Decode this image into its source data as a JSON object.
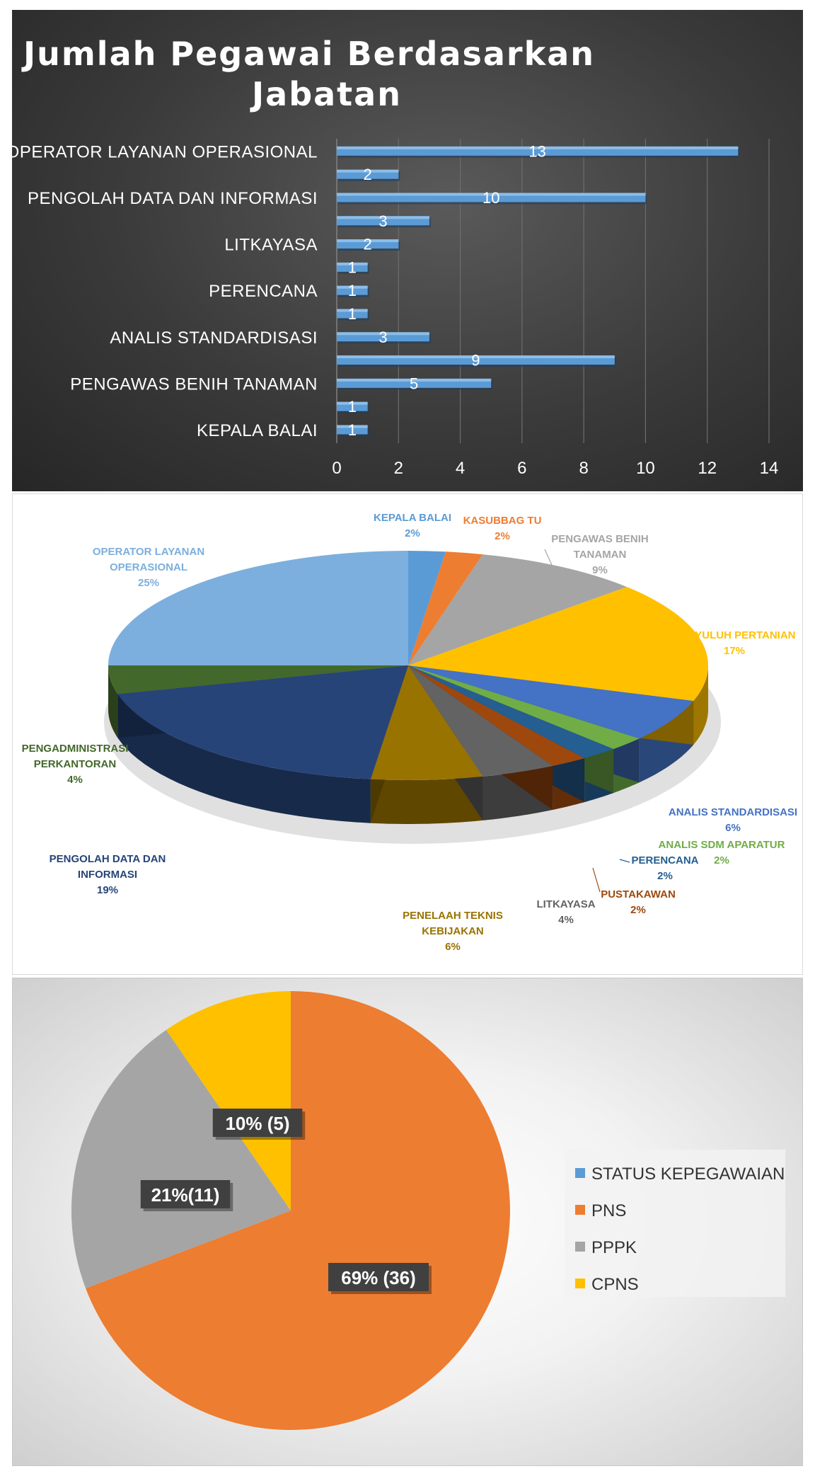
{
  "chart_data": [
    {
      "type": "bar",
      "orientation": "horizontal",
      "title": "Jumlah Pegawai Berdasarkan Jabatan",
      "title_lines": [
        "Jumlah Pegawai Berdasarkan",
        "Jabatan"
      ],
      "categories": [
        "OPERATOR LAYANAN OPERASIONAL",
        "",
        "PENGOLAH DATA DAN INFORMASI",
        "",
        "LITKAYASA",
        "",
        "PERENCANA",
        "",
        "ANALIS STANDARDISASI",
        "",
        "PENGAWAS BENIH TANAMAN",
        "",
        "KEPALA BALAI"
      ],
      "values": [
        13,
        2,
        10,
        3,
        2,
        1,
        1,
        1,
        3,
        9,
        5,
        1,
        1
      ],
      "xlim": [
        0,
        14
      ],
      "xticks": [
        "0",
        "2",
        "4",
        "6",
        "8",
        "10",
        "12",
        "14"
      ],
      "grid": "vertical",
      "bar_color": "#5b9bd5",
      "background": "#3a3a3a"
    },
    {
      "type": "pie",
      "style": "3d",
      "slices": [
        {
          "name": "KEPALA BALAI",
          "value": 2,
          "label": "2%",
          "color": "#5b9bd5",
          "text_color": "#5b9bd5",
          "lines": [
            "KEPALA BALAI"
          ]
        },
        {
          "name": "KASUBBAG TU",
          "value": 2,
          "label": "2%",
          "color": "#ed7d31",
          "text_color": "#ed7d31",
          "lines": [
            "KASUBBAG TU"
          ]
        },
        {
          "name": "PENGAWAS BENIH TANAMAN",
          "value": 9,
          "label": "9%",
          "color": "#a5a5a5",
          "text_color": "#a5a5a5",
          "lines": [
            "PENGAWAS BENIH",
            "TANAMAN"
          ]
        },
        {
          "name": "PENYULUH PERTANIAN",
          "value": 17,
          "label": "17%",
          "color": "#ffc000",
          "text_color": "#ffc000",
          "lines": [
            "PENYULUH PERTANIAN"
          ]
        },
        {
          "name": "ANALIS STANDARDISASI",
          "value": 6,
          "label": "6%",
          "color": "#4472c4",
          "text_color": "#4472c4",
          "lines": [
            "ANALIS STANDARDISASI"
          ]
        },
        {
          "name": "ANALIS SDM APARATUR",
          "value": 2,
          "label": "2%",
          "color": "#70ad47",
          "text_color": "#70ad47",
          "lines": [
            "ANALIS SDM APARATUR"
          ]
        },
        {
          "name": "PERENCANA",
          "value": 2,
          "label": "2%",
          "color": "#255e91",
          "text_color": "#255e91",
          "lines": [
            "PERENCANA"
          ]
        },
        {
          "name": "PUSTAKAWAN",
          "value": 2,
          "label": "2%",
          "color": "#9e480e",
          "text_color": "#9e480e",
          "lines": [
            "PUSTAKAWAN"
          ]
        },
        {
          "name": "LITKAYASA",
          "value": 4,
          "label": "4%",
          "color": "#636363",
          "text_color": "#636363",
          "lines": [
            "LITKAYASA"
          ]
        },
        {
          "name": "PENELAAH TEKNIS KEBIJAKAN",
          "value": 6,
          "label": "6%",
          "color": "#997300",
          "text_color": "#997300",
          "lines": [
            "PENELAAH TEKNIS",
            "KEBIJAKAN"
          ]
        },
        {
          "name": "PENGOLAH DATA DAN INFORMASI",
          "value": 19,
          "label": "19%",
          "color": "#264478",
          "text_color": "#264478",
          "lines": [
            "PENGOLAH DATA DAN",
            "INFORMASI"
          ]
        },
        {
          "name": "PENGADMINISTRASI PERKANTORAN",
          "value": 4,
          "label": "4%",
          "color": "#43682b",
          "text_color": "#43682b",
          "lines": [
            "PENGADMINISTRASI",
            "PERKANTORAN"
          ]
        },
        {
          "name": "OPERATOR LAYANAN OPERASIONAL",
          "value": 25,
          "label": "25%",
          "color": "#7cafdd",
          "text_color": "#7cafdd",
          "lines": [
            "OPERATOR LAYANAN",
            "OPERASIONAL"
          ]
        }
      ]
    },
    {
      "type": "pie",
      "slices": [
        {
          "name": "PNS",
          "value": 36,
          "label": "69% (36)",
          "color": "#ed7d31"
        },
        {
          "name": "PPPK",
          "value": 11,
          "label": "21%(11)",
          "color": "#a5a5a5"
        },
        {
          "name": "CPNS",
          "value": 5,
          "label": "10% (5)",
          "color": "#ffc000"
        }
      ],
      "legend": [
        {
          "name": "STATUS KEPEGAWAIAN",
          "color": "#5b9bd5"
        },
        {
          "name": "PNS",
          "color": "#ed7d31"
        },
        {
          "name": "PPPK",
          "color": "#a5a5a5"
        },
        {
          "name": "CPNS",
          "color": "#ffc000"
        }
      ],
      "legend_position": "right"
    }
  ]
}
